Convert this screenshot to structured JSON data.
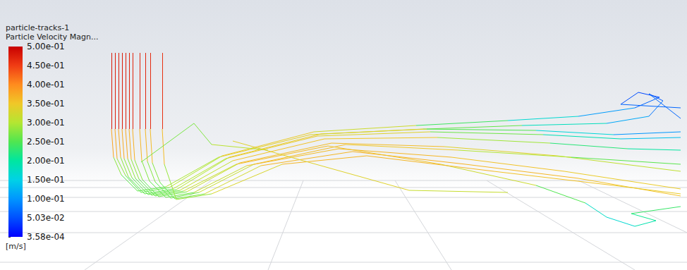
{
  "chart_data": {
    "type": "line",
    "title": "particle-tracks-1",
    "subtitle": "Particle Velocity Magn...",
    "tick_labels": false,
    "grid": false,
    "xlim": [
      0,
      974
    ],
    "ylim": [
      0,
      383
    ],
    "colorbar": {
      "label": "[m/s]",
      "range": [
        0.000358,
        0.5
      ],
      "ticks": [
        {
          "value": 0.5,
          "label": "5.00e-01"
        },
        {
          "value": 0.45,
          "label": "4.50e-01"
        },
        {
          "value": 0.4,
          "label": "4.00e-01"
        },
        {
          "value": 0.35,
          "label": "3.50e-01"
        },
        {
          "value": 0.3,
          "label": "3.00e-01"
        },
        {
          "value": 0.25,
          "label": "2.50e-01"
        },
        {
          "value": 0.2,
          "label": "2.00e-01"
        },
        {
          "value": 0.15,
          "label": "1.50e-01"
        },
        {
          "value": 0.1,
          "label": "1.00e-01"
        },
        {
          "value": 0.0503,
          "label": "5.03e-02"
        },
        {
          "value": 0.000358,
          "label": "3.58e-04"
        }
      ]
    },
    "tracks": [
      {
        "x": [
          158,
          158,
          161,
          172,
          195,
          235,
          310,
          440,
          600,
          760,
          870,
          965
        ],
        "y": [
          308,
          200,
          160,
          135,
          112,
          118,
          160,
          192,
          200,
          198,
          192,
          196
        ],
        "values": [
          0.5,
          0.46,
          0.3,
          0.26,
          0.25,
          0.27,
          0.32,
          0.36,
          0.3,
          0.2,
          0.12,
          0.08
        ]
      },
      {
        "x": [
          168,
          168,
          171,
          182,
          205,
          245,
          320,
          450,
          610,
          770,
          880,
          965
        ],
        "y": [
          308,
          200,
          160,
          132,
          108,
          115,
          158,
          190,
          196,
          192,
          186,
          188
        ],
        "values": [
          0.5,
          0.45,
          0.3,
          0.26,
          0.25,
          0.27,
          0.33,
          0.36,
          0.31,
          0.22,
          0.15,
          0.12
        ]
      },
      {
        "x": [
          178,
          178,
          181,
          192,
          215,
          255,
          330,
          460,
          620,
          780,
          890,
          965
        ],
        "y": [
          308,
          200,
          158,
          130,
          106,
          113,
          155,
          186,
          188,
          180,
          172,
          170
        ],
        "values": [
          0.5,
          0.45,
          0.3,
          0.26,
          0.25,
          0.28,
          0.34,
          0.37,
          0.33,
          0.25,
          0.2,
          0.2
        ]
      },
      {
        "x": [
          188,
          188,
          191,
          202,
          225,
          265,
          340,
          470,
          630,
          790,
          965
        ],
        "y": [
          308,
          200,
          156,
          128,
          104,
          111,
          152,
          180,
          175,
          162,
          140
        ],
        "values": [
          0.5,
          0.44,
          0.3,
          0.26,
          0.25,
          0.28,
          0.35,
          0.37,
          0.35,
          0.32,
          0.3
        ]
      },
      {
        "x": [
          198,
          198,
          201,
          212,
          235,
          275,
          350,
          480,
          640,
          800,
          965
        ],
        "y": [
          308,
          200,
          155,
          126,
          103,
          110,
          148,
          172,
          160,
          140,
          115
        ],
        "values": [
          0.5,
          0.44,
          0.29,
          0.26,
          0.25,
          0.28,
          0.35,
          0.37,
          0.36,
          0.35,
          0.34
        ]
      },
      {
        "x": [
          206,
          206,
          209,
          220,
          242,
          282,
          360,
          490,
          650,
          810,
          965
        ],
        "y": [
          308,
          200,
          154,
          125,
          102,
          110,
          150,
          178,
          170,
          160,
          150
        ],
        "values": [
          0.5,
          0.44,
          0.29,
          0.26,
          0.25,
          0.28,
          0.35,
          0.37,
          0.33,
          0.27,
          0.24
        ]
      },
      {
        "x": [
          213,
          213,
          216,
          227,
          248,
          290,
          370,
          500,
          660,
          820,
          965
        ],
        "y": [
          308,
          200,
          152,
          124,
          101,
          108,
          148,
          168,
          150,
          130,
          105
        ],
        "values": [
          0.5,
          0.43,
          0.29,
          0.26,
          0.25,
          0.29,
          0.36,
          0.37,
          0.37,
          0.36,
          0.35
        ]
      },
      {
        "x": [
          163,
          163,
          166,
          178,
          200,
          240,
          315,
          445,
          590,
          720,
          820,
          900,
          935,
          905,
          880,
          965
        ],
        "y": [
          308,
          200,
          158,
          134,
          110,
          117,
          162,
          196,
          205,
          212,
          218,
          230,
          245,
          252,
          235,
          230
        ],
        "values": [
          0.5,
          0.45,
          0.3,
          0.26,
          0.25,
          0.27,
          0.33,
          0.36,
          0.28,
          0.2,
          0.13,
          0.08,
          0.05,
          0.04,
          0.06,
          0.07
        ]
      },
      {
        "x": [
          173,
          173,
          176,
          187,
          210,
          250,
          325,
          455,
          605,
          740,
          860,
          920,
          940,
          920,
          965
        ],
        "y": [
          308,
          200,
          158,
          131,
          107,
          114,
          160,
          193,
          200,
          205,
          208,
          218,
          240,
          250,
          215
        ],
        "values": [
          0.5,
          0.45,
          0.3,
          0.26,
          0.25,
          0.27,
          0.33,
          0.36,
          0.3,
          0.22,
          0.14,
          0.09,
          0.06,
          0.05,
          0.08
        ]
      },
      {
        "x": [
          183,
          183,
          186,
          197,
          220,
          260,
          335,
          465,
          625,
          760,
          830,
          860,
          900,
          930,
          895,
          965
        ],
        "y": [
          308,
          200,
          157,
          129,
          105,
          112,
          150,
          176,
          150,
          120,
          95,
          75,
          62,
          70,
          80,
          90
        ],
        "values": [
          0.5,
          0.44,
          0.3,
          0.26,
          0.25,
          0.28,
          0.35,
          0.37,
          0.34,
          0.3,
          0.2,
          0.15,
          0.18,
          0.2,
          0.22,
          0.25
        ]
      },
      {
        "x": [
          230,
          230,
          233,
          250,
          300,
          400,
          520,
          700,
          870,
          965
        ],
        "y": [
          308,
          200,
          150,
          100,
          108,
          150,
          162,
          140,
          120,
          108
        ],
        "values": [
          0.5,
          0.42,
          0.3,
          0.27,
          0.3,
          0.36,
          0.37,
          0.36,
          0.35,
          0.34
        ]
      },
      {
        "x": [
          200,
          275,
          300,
          380
        ],
        "y": [
          153,
          208,
          178,
          170
        ],
        "values": [
          0.27,
          0.27,
          0.28,
          0.33
        ]
      },
      {
        "x": [
          330,
          580,
          720
        ],
        "y": [
          183,
          113,
          110
        ],
        "values": [
          0.34,
          0.33,
          0.3
        ]
      }
    ]
  }
}
